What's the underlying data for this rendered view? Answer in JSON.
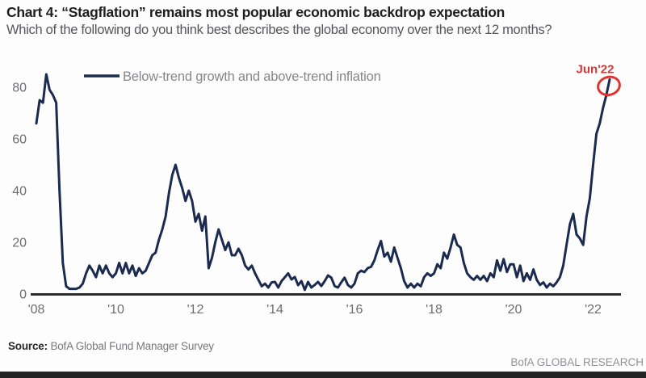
{
  "chart_data": {
    "type": "line",
    "title": "Chart 4: “Stagflation” remains most popular economic backdrop expectation",
    "subtitle": "Which of the following do you think best describes the global economy over the next 12 months?",
    "xlabel": "",
    "ylabel": "",
    "grid": false,
    "legend_position": "top-left",
    "x_start": "2008-01",
    "x_end": "2022-06",
    "x_frequency": "monthly",
    "x_tick_labels": [
      "'08",
      "'10",
      "'12",
      "'14",
      "'16",
      "'18",
      "'20",
      "'22"
    ],
    "x_tick_month_interval": 24,
    "y_ticks": [
      0,
      20,
      40,
      60,
      80
    ],
    "ylim": [
      0,
      90
    ],
    "series": [
      {
        "name": "Below-trend growth and above-trend inflation",
        "color": "#1b2a4f",
        "values": [
          66,
          75,
          74,
          85,
          79,
          77,
          74,
          40,
          12,
          3,
          2,
          2,
          2,
          2.5,
          4,
          8,
          11,
          9,
          6.5,
          11,
          8,
          11,
          8,
          6.5,
          8,
          12,
          8,
          12,
          8,
          11,
          7,
          10,
          8,
          9,
          12,
          15,
          16,
          21,
          25,
          30,
          39,
          46,
          50,
          45,
          41,
          36,
          40,
          36,
          28,
          31,
          24.5,
          30,
          10,
          14,
          20,
          25,
          21,
          17,
          20,
          15,
          15,
          17.5,
          15,
          11,
          9.5,
          11,
          8,
          5.5,
          3,
          4,
          2.5,
          4.5,
          4.7,
          2.5,
          5,
          6.5,
          8,
          5.6,
          6.6,
          3.4,
          5,
          1.6,
          4.7,
          2.5,
          3.5,
          4.7,
          3.1,
          5,
          7.2,
          6.3,
          3.1,
          2.5,
          4.5,
          6.3,
          3.5,
          2.5,
          4,
          8,
          9,
          8.5,
          10,
          10.5,
          13,
          17,
          20.5,
          14.5,
          16,
          12.5,
          18,
          14,
          10,
          5,
          2.5,
          4,
          2.5,
          4,
          3,
          6.5,
          8,
          7,
          8,
          11.5,
          10,
          16,
          13.7,
          18,
          23,
          19,
          18,
          12,
          8,
          6.5,
          5.5,
          7,
          5.5,
          7,
          5,
          8,
          6.5,
          13,
          9,
          13.5,
          8.5,
          11.5,
          11.5,
          6.5,
          11,
          5,
          8,
          5.5,
          9.5,
          5.5,
          3.5,
          4.5,
          2.5,
          4,
          3,
          4.5,
          6.5,
          11,
          19,
          27,
          31,
          23,
          21.5,
          19,
          30,
          37,
          50,
          62,
          66,
          72,
          77,
          83
        ]
      }
    ],
    "annotation": {
      "label": "Jun'22",
      "value": 83,
      "color": "#dd3434"
    }
  },
  "footer": {
    "source_label": "Source:",
    "source_text": "BofA Global Fund Manager Survey",
    "brand": "BofA GLOBAL RESEARCH"
  },
  "colors": {
    "line": "#1b2a4f",
    "axis": "#2d2d2d",
    "tick_text": "#6d6e71",
    "annotation_red": "#dd3434"
  }
}
